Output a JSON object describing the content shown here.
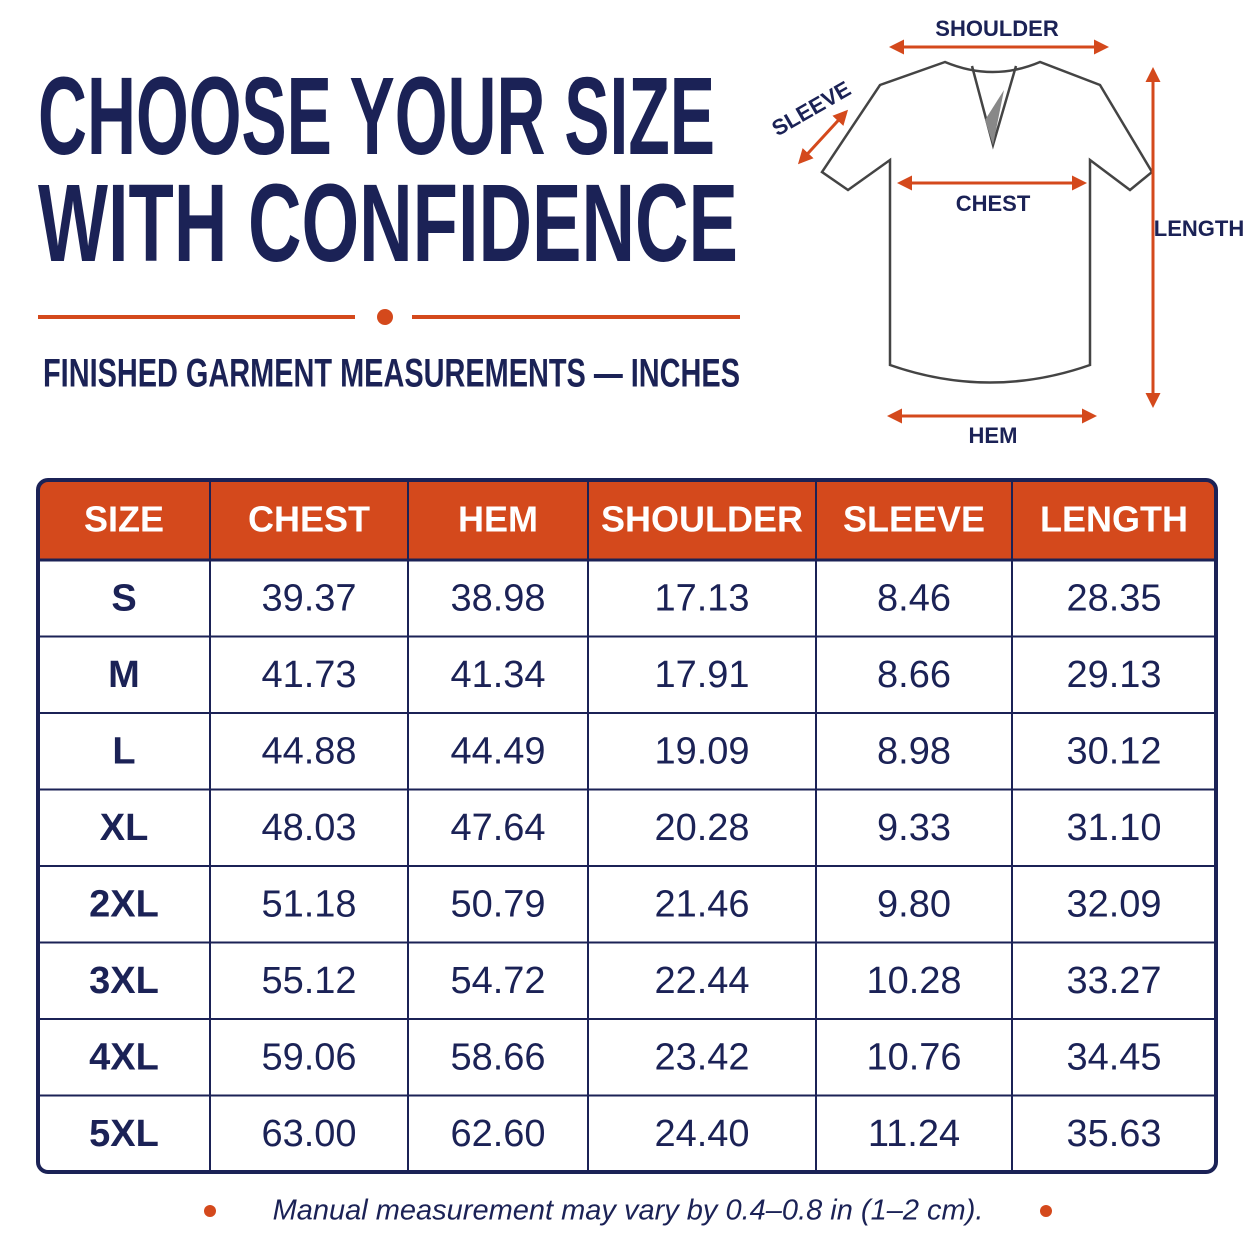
{
  "header": {
    "title": [
      "CHOOSE YOUR SIZE",
      "WITH CONFIDENCE"
    ],
    "subtitle": "FINISHED GARMENT MEASUREMENTS — INCHES"
  },
  "diagram": {
    "labels": {
      "shoulder": "SHOULDER",
      "sleeve": "SLEEVE",
      "chest": "CHEST",
      "length": "LENGTH",
      "hem": "HEM"
    }
  },
  "table": {
    "columns": [
      "SIZE",
      "CHEST",
      "HEM",
      "SHOULDER",
      "SLEEVE",
      "LENGTH"
    ],
    "rows": [
      [
        "S",
        "39.37",
        "38.98",
        "17.13",
        "8.46",
        "28.35"
      ],
      [
        "M",
        "41.73",
        "41.34",
        "17.91",
        "8.66",
        "29.13"
      ],
      [
        "L",
        "44.88",
        "44.49",
        "19.09",
        "8.98",
        "30.12"
      ],
      [
        "XL",
        "48.03",
        "47.64",
        "20.28",
        "9.33",
        "31.10"
      ],
      [
        "2XL",
        "51.18",
        "50.79",
        "21.46",
        "9.80",
        "32.09"
      ],
      [
        "3XL",
        "55.12",
        "54.72",
        "22.44",
        "10.28",
        "33.27"
      ],
      [
        "4XL",
        "59.06",
        "58.66",
        "23.42",
        "10.76",
        "34.45"
      ],
      [
        "5XL",
        "63.00",
        "62.60",
        "24.40",
        "11.24",
        "35.63"
      ]
    ]
  },
  "footnote": "Manual measurement may vary by 0.4–0.8 in (1–2 cm)."
}
